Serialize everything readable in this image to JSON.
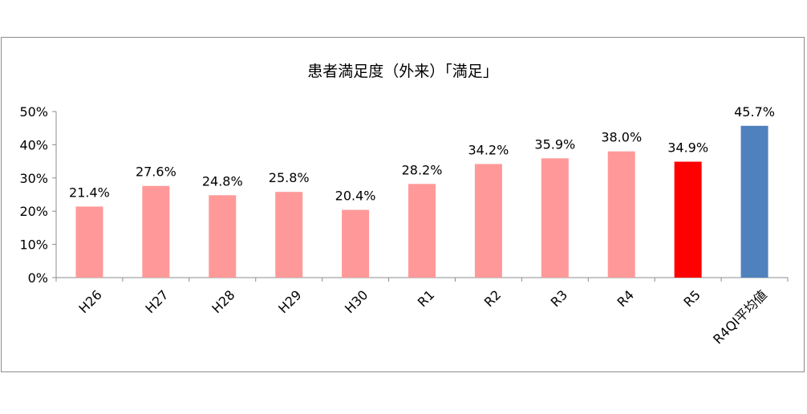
{
  "chart_data": {
    "type": "bar",
    "title": "患者満足度（外来）「満足」",
    "categories": [
      "H26",
      "H27",
      "H28",
      "H29",
      "H30",
      "R1",
      "R2",
      "R3",
      "R4",
      "R5",
      "R4QI平均値"
    ],
    "values": [
      21.4,
      27.6,
      24.8,
      25.8,
      20.4,
      28.2,
      34.2,
      35.9,
      38.0,
      34.9,
      45.7
    ],
    "data_labels": [
      "21.4%",
      "27.6%",
      "24.8%",
      "25.8%",
      "20.4%",
      "28.2%",
      "34.2%",
      "35.9%",
      "38.0%",
      "34.9%",
      "45.7%"
    ],
    "bar_colors": [
      "#ff9999",
      "#ff9999",
      "#ff9999",
      "#ff9999",
      "#ff9999",
      "#ff9999",
      "#ff9999",
      "#ff9999",
      "#ff9999",
      "#ff0000",
      "#4f81bd"
    ],
    "ylim": [
      0,
      50
    ],
    "yticks": [
      0,
      10,
      20,
      30,
      40,
      50
    ],
    "ytick_labels": [
      "0%",
      "10%",
      "20%",
      "30%",
      "40%",
      "50%"
    ],
    "xlabel": "",
    "ylabel": "",
    "grid": false,
    "legend": "none"
  }
}
